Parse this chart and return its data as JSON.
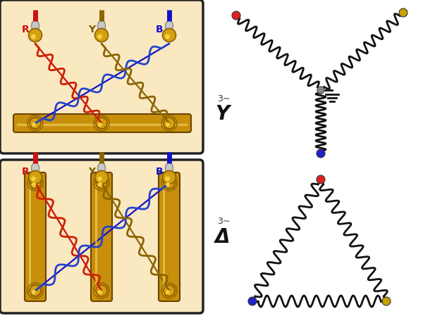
{
  "bg_color": "#ffffff",
  "panel_bg": "#fae8c0",
  "panel_border": "#222222",
  "wire_red": "#cc1111",
  "wire_blue": "#1111cc",
  "wire_yellow": "#8b6600",
  "coil_red": "#cc2200",
  "coil_blue": "#2244cc",
  "coil_yellow": "#8b6400",
  "label_R_color": "#cc1111",
  "label_Y_color": "#7a5900",
  "label_B_color": "#1111cc",
  "schematic_color": "#111111",
  "dot_red": "#dd2222",
  "dot_yellow": "#c8a000",
  "dot_blue": "#2222cc",
  "dot_gray": "#777777",
  "title_Y": "Y",
  "title_D": "Δ",
  "prefix": "3~",
  "fig_width": 6.0,
  "fig_height": 4.49,
  "dpi": 100
}
